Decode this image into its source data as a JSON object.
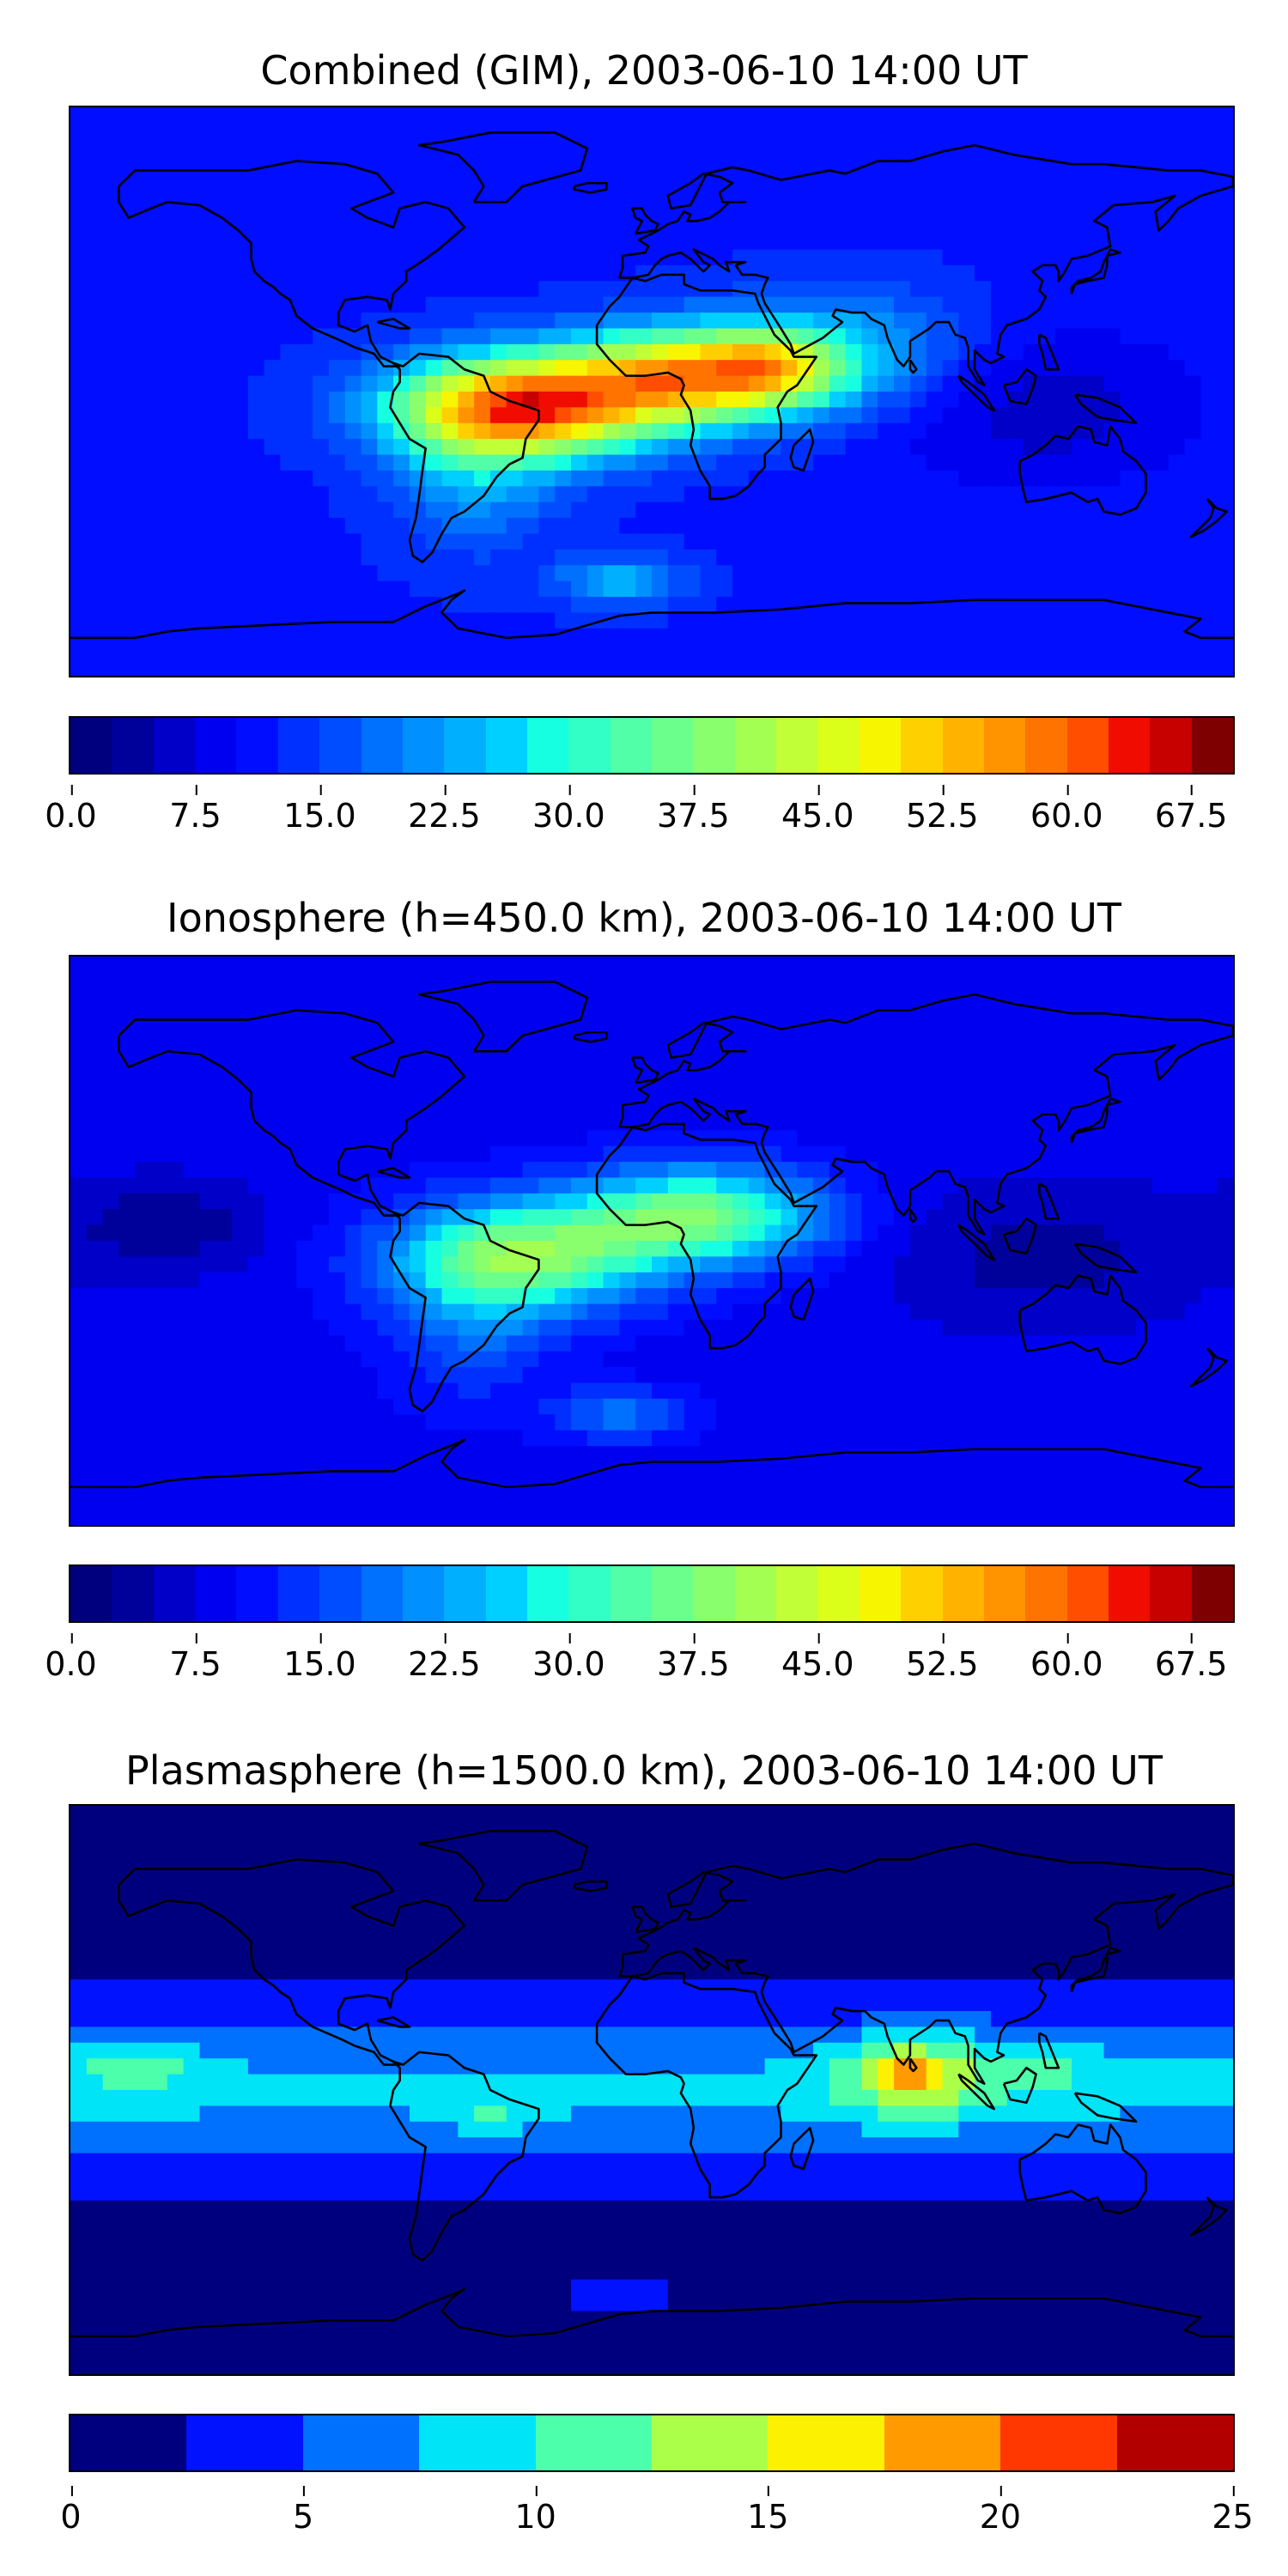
{
  "palettes": {
    "jet28": [
      "#00007f",
      "#00009b",
      "#0000c8",
      "#0000f1",
      "#000dff",
      "#0030ff",
      "#004dff",
      "#0070ff",
      "#0090ff",
      "#00b0ff",
      "#00d0ff",
      "#16ffe1",
      "#31ffc6",
      "#50ffa7",
      "#6bff8c",
      "#8aff6d",
      "#a4ff53",
      "#c1ff36",
      "#dcff1a",
      "#f8f500",
      "#ffd000",
      "#ffb200",
      "#ff9400",
      "#ff7300",
      "#ff4e00",
      "#f10c00",
      "#c70000",
      "#7f0000"
    ],
    "jet10": [
      "#00007f",
      "#0012ff",
      "#0070ff",
      "#00e4f8",
      "#4cffaa",
      "#acff49",
      "#fbf100",
      "#ff9a00",
      "#ff3700",
      "#b20000"
    ]
  },
  "panels": [
    {
      "id": "combined",
      "title": "Combined (GIM), 2003-06-10 14:00 UT",
      "colorbar": {
        "min": 0.0,
        "max": 70.0,
        "levels": 28,
        "ticks": [
          "0.0",
          "7.5",
          "15.0",
          "22.5",
          "30.0",
          "37.5",
          "45.0",
          "52.5",
          "60.0",
          "67.5"
        ],
        "tick_values": [
          0,
          7.5,
          15,
          22.5,
          30,
          37.5,
          45,
          52.5,
          60,
          67.5
        ]
      },
      "field": {
        "background": 12,
        "blobs": [
          {
            "lon": -40,
            "lat": -5,
            "slon": 40,
            "slat": 16,
            "amp": 46
          },
          {
            "lon": 15,
            "lat": 5,
            "slon": 40,
            "slat": 15,
            "amp": 40
          },
          {
            "lon": 38,
            "lat": 8,
            "slon": 18,
            "slat": 10,
            "amp": 12
          },
          {
            "lon": -55,
            "lat": -25,
            "slon": 25,
            "slat": 25,
            "amp": 10
          },
          {
            "lon": 60,
            "lat": 15,
            "slon": 40,
            "slat": 18,
            "amp": 10
          },
          {
            "lon": -10,
            "lat": -60,
            "slon": 20,
            "slat": 8,
            "amp": 12
          },
          {
            "lon": 120,
            "lat": -5,
            "slon": 50,
            "slat": 25,
            "amp": -6
          }
        ]
      }
    },
    {
      "id": "ionosphere",
      "title": "Ionosphere  (h=450.0 km), 2003-06-10 14:00 UT",
      "colorbar": {
        "min": 0.0,
        "max": 70.0,
        "levels": 28,
        "ticks": [
          "0.0",
          "7.5",
          "15.0",
          "22.5",
          "30.0",
          "37.5",
          "45.0",
          "52.5",
          "60.0",
          "67.5"
        ],
        "tick_values": [
          0,
          7.5,
          15,
          22.5,
          30,
          37.5,
          45,
          52.5,
          60,
          67.5
        ]
      },
      "field": {
        "background": 9,
        "blobs": [
          {
            "lon": -40,
            "lat": -5,
            "slon": 40,
            "slat": 17,
            "amp": 28
          },
          {
            "lon": 15,
            "lat": 8,
            "slon": 38,
            "slat": 15,
            "amp": 28
          },
          {
            "lon": -55,
            "lat": -25,
            "slon": 25,
            "slat": 25,
            "amp": 8
          },
          {
            "lon": -10,
            "lat": -55,
            "slon": 20,
            "slat": 8,
            "amp": 10
          },
          {
            "lon": 120,
            "lat": -5,
            "slon": 50,
            "slat": 25,
            "amp": -5
          },
          {
            "lon": -150,
            "lat": 5,
            "slon": 30,
            "slat": 15,
            "amp": -6
          }
        ]
      }
    },
    {
      "id": "plasmasphere",
      "title": "Plasmasphere (h=1500.0 km), 2003-06-10 14:00 UT",
      "colorbar": {
        "min": 0,
        "max": 25,
        "levels": 10,
        "ticks": [
          "0",
          "5",
          "10",
          "15",
          "20",
          "25"
        ],
        "tick_values": [
          0,
          5,
          10,
          15,
          20,
          25
        ]
      },
      "field": {
        "background": 2,
        "band": {
          "lat": 0,
          "slat": 22,
          "amp": 6
        },
        "blobs": [
          {
            "lon": 80,
            "lat": 5,
            "slon": 22,
            "slat": 14,
            "amp": 8
          },
          {
            "lon": 78,
            "lat": 5,
            "slon": 8,
            "slat": 6,
            "amp": 5
          },
          {
            "lon": 120,
            "lat": 8,
            "slon": 22,
            "slat": 12,
            "amp": 3
          },
          {
            "lon": -160,
            "lat": 8,
            "slon": 20,
            "slat": 10,
            "amp": 4
          },
          {
            "lon": -50,
            "lat": -8,
            "slon": 15,
            "slat": 8,
            "amp": 3
          },
          {
            "lon": -10,
            "lat": -65,
            "slon": 15,
            "slat": 6,
            "amp": 2
          }
        ]
      }
    }
  ],
  "map": {
    "lon_range": [
      -180,
      180
    ],
    "lat_range": [
      -90,
      90
    ],
    "coastline_color": "#000000"
  }
}
